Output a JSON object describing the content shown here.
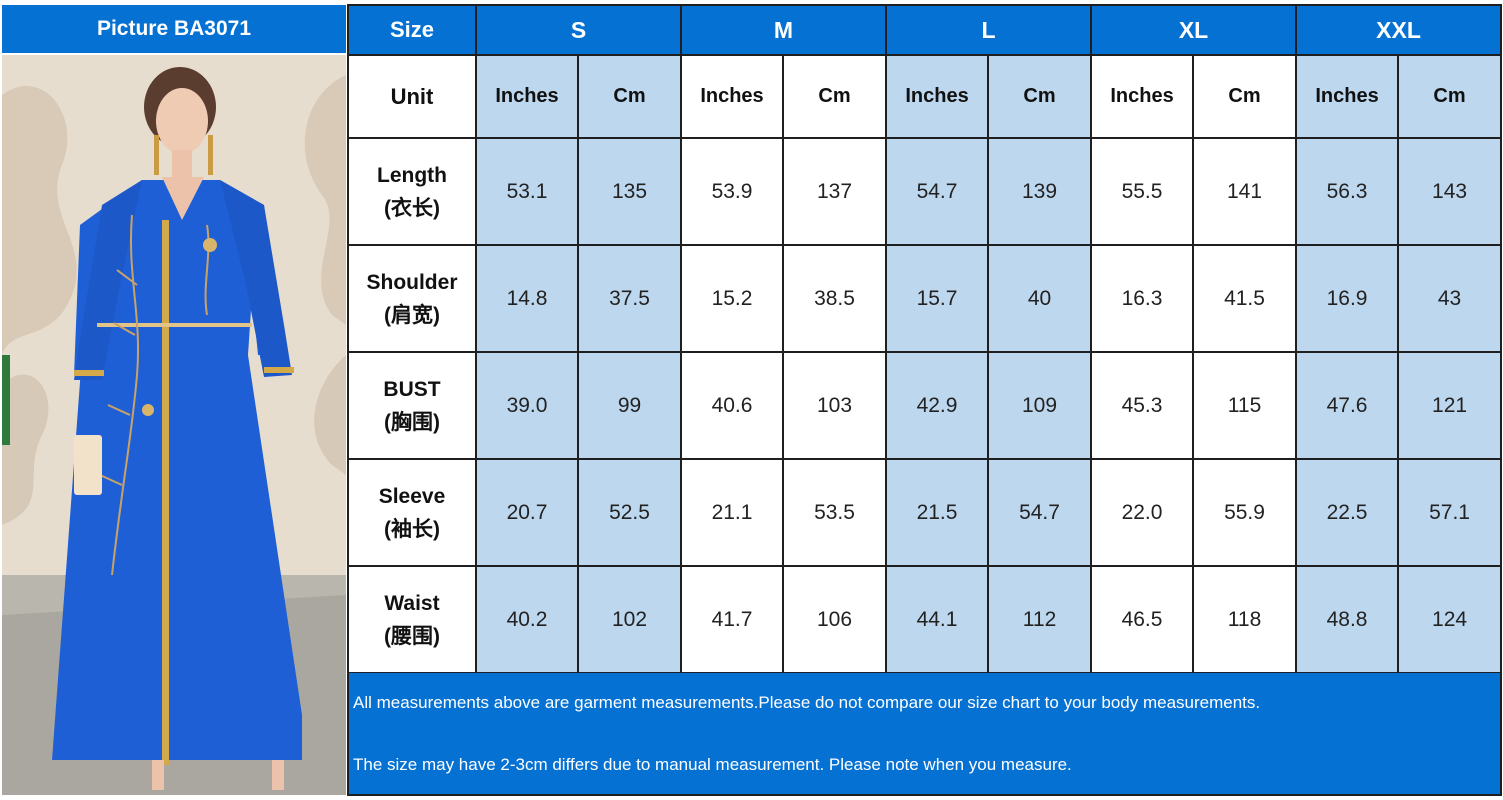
{
  "picture_header": "Picture  BA3071",
  "size_header": "Size",
  "unit_label": "Unit",
  "sizes": [
    "S",
    "M",
    "L",
    "XL",
    "XXL"
  ],
  "units": [
    "Inches",
    "Cm"
  ],
  "rows": [
    {
      "label": "Length",
      "label_cn": "(衣长)",
      "values": [
        "53.1",
        "135",
        "53.9",
        "137",
        "54.7",
        "139",
        "55.5",
        "141",
        "56.3",
        "143"
      ]
    },
    {
      "label": "Shoulder",
      "label_cn": "(肩宽)",
      "values": [
        "14.8",
        "37.5",
        "15.2",
        "38.5",
        "15.7",
        "40",
        "16.3",
        "41.5",
        "16.9",
        "43"
      ]
    },
    {
      "label": "BUST",
      "label_cn": "(胸围)",
      "values": [
        "39.0",
        "99",
        "40.6",
        "103",
        "42.9",
        "109",
        "45.3",
        "115",
        "47.6",
        "121"
      ]
    },
    {
      "label": "Sleeve",
      "label_cn": "(袖长)",
      "values": [
        "20.7",
        "52.5",
        "21.1",
        "53.5",
        "21.5",
        "54.7",
        "22.0",
        "55.9",
        "22.5",
        "57.1"
      ]
    },
    {
      "label": "Waist",
      "label_cn": "(腰围)",
      "values": [
        "40.2",
        "102",
        "41.7",
        "106",
        "44.1",
        "112",
        "46.5",
        "118",
        "48.8",
        "124"
      ]
    }
  ],
  "notes": [
    "All measurements above are garment measurements.Please do not compare our size chart to your body measurements.",
    "The size may have 2-3cm differs due to manual measurement. Please note when you measure."
  ],
  "colors": {
    "header_blue": "#0571d2",
    "light_blue_cell": "#bdd7ee",
    "dress_blue": "#1f5fd6",
    "gold_trim": "#d4a94a"
  },
  "image": "model-in-blue-embellished-dress"
}
